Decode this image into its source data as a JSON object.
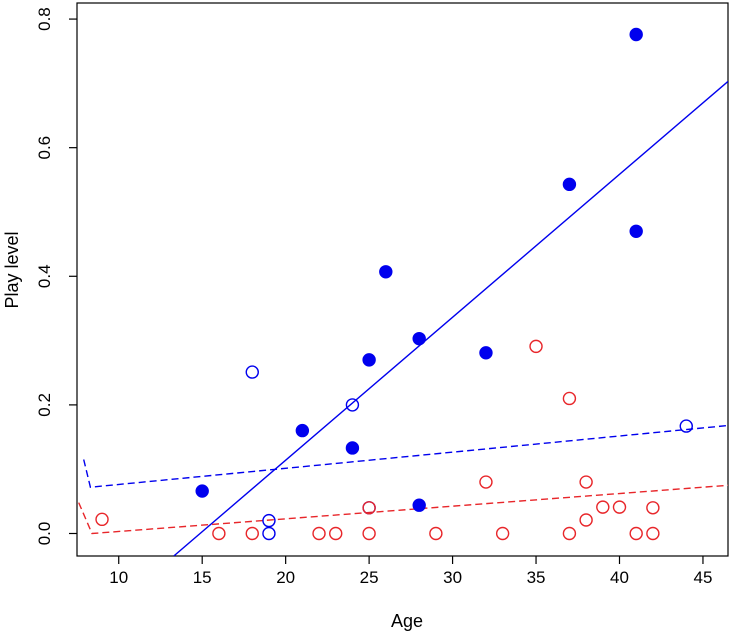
{
  "chart_data": {
    "type": "scatter",
    "title": "",
    "xlabel": "Age",
    "ylabel": "Play level",
    "xlim": [
      7.5,
      46.5
    ],
    "ylim": [
      -0.035,
      0.825
    ],
    "x_ticks": [
      10,
      15,
      20,
      25,
      30,
      35,
      40,
      45
    ],
    "y_ticks": [
      0.0,
      0.2,
      0.4,
      0.6,
      0.8
    ],
    "x_tick_labels": [
      "10",
      "15",
      "20",
      "25",
      "30",
      "35",
      "40",
      "45"
    ],
    "y_tick_labels": [
      "0.0",
      "0.2",
      "0.4",
      "0.6",
      "0.8"
    ],
    "grid": false,
    "legend": "none",
    "colors": {
      "blue": "#0000ee",
      "red": "#e8262a"
    },
    "series": [
      {
        "color": "#0000ee",
        "marker": "filled-circle",
        "points": [
          {
            "x": 15,
            "y": 0.066
          },
          {
            "x": 21,
            "y": 0.16
          },
          {
            "x": 24,
            "y": 0.133
          },
          {
            "x": 25,
            "y": 0.27
          },
          {
            "x": 26,
            "y": 0.407
          },
          {
            "x": 28,
            "y": 0.303
          },
          {
            "x": 28,
            "y": 0.044
          },
          {
            "x": 32,
            "y": 0.281
          },
          {
            "x": 37,
            "y": 0.543
          },
          {
            "x": 41,
            "y": 0.776
          },
          {
            "x": 41,
            "y": 0.47
          }
        ]
      },
      {
        "color": "#0000ee",
        "marker": "open-circle",
        "points": [
          {
            "x": 18,
            "y": 0.251
          },
          {
            "x": 19,
            "y": 0.02
          },
          {
            "x": 19,
            "y": 0.0
          },
          {
            "x": 24,
            "y": 0.2
          },
          {
            "x": 25,
            "y": 0.04
          },
          {
            "x": 44,
            "y": 0.167
          }
        ]
      },
      {
        "color": "#e8262a",
        "marker": "open-circle",
        "points": [
          {
            "x": 9,
            "y": 0.022
          },
          {
            "x": 16,
            "y": 0.0
          },
          {
            "x": 18,
            "y": 0.0
          },
          {
            "x": 22,
            "y": 0.0
          },
          {
            "x": 23,
            "y": 0.0
          },
          {
            "x": 25,
            "y": 0.04
          },
          {
            "x": 25,
            "y": 0.0
          },
          {
            "x": 29,
            "y": 0.0
          },
          {
            "x": 32,
            "y": 0.08
          },
          {
            "x": 33,
            "y": 0.0
          },
          {
            "x": 35,
            "y": 0.291
          },
          {
            "x": 37,
            "y": 0.21
          },
          {
            "x": 37,
            "y": 0.0
          },
          {
            "x": 38,
            "y": 0.08
          },
          {
            "x": 38,
            "y": 0.021
          },
          {
            "x": 39,
            "y": 0.041
          },
          {
            "x": 40,
            "y": 0.041
          },
          {
            "x": 41,
            "y": 0.0
          },
          {
            "x": 42,
            "y": 0.04
          },
          {
            "x": 42,
            "y": 0.0
          }
        ]
      }
    ],
    "lines": [
      {
        "color": "#0000ee",
        "style": "solid",
        "points": [
          [
            13.3,
            -0.035
          ],
          [
            46.5,
            0.703
          ]
        ]
      },
      {
        "color": "#0000ee",
        "style": "dashed",
        "points": [
          [
            7.9,
            0.115
          ],
          [
            8.3,
            0.072
          ],
          [
            46.5,
            0.168
          ]
        ]
      },
      {
        "color": "#e8262a",
        "style": "dashed",
        "points": [
          [
            7.6,
            0.048
          ],
          [
            8.4,
            0.0
          ],
          [
            46.5,
            0.075
          ]
        ]
      }
    ]
  }
}
